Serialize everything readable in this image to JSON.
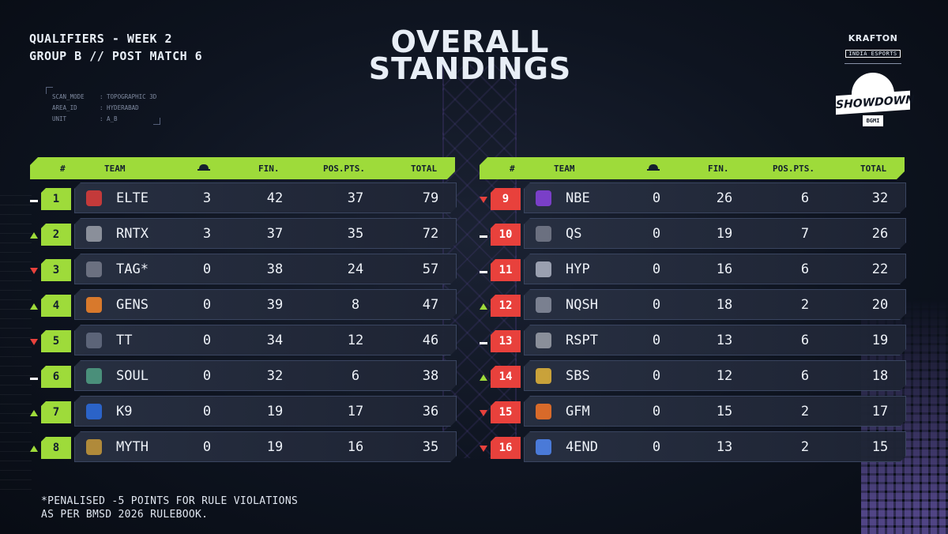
{
  "header": {
    "line1": "QUALIFIERS - WEEK 2",
    "line2": "GROUP B // POST MATCH 6"
  },
  "scan_panel": [
    {
      "key": "SCAN_MODE",
      "value": ": TOPOGRAPHIC 3D"
    },
    {
      "key": "AREA_ID",
      "value": ": HYDERABAD"
    },
    {
      "key": "UNIT",
      "value": ": A_B"
    }
  ],
  "title": {
    "line1": "OVERALL",
    "line2": "STANDINGS"
  },
  "brand": {
    "name": "KRAFTON",
    "sub": "INDIA ESPORTS",
    "badge": "SHOWDOWN",
    "badge_sub": "BGMI"
  },
  "columns": {
    "rank": "#",
    "team": "TEAM",
    "fin": "FIN.",
    "pos": "POS.PTS.",
    "total": "TOTAL"
  },
  "colors": {
    "accent": "#9edb3a",
    "down": "#e8413c",
    "bg": "#0e1420"
  },
  "left_rows": [
    {
      "change": "same",
      "rank": "1",
      "team": "ELTE",
      "elims": "3",
      "fin": "42",
      "pos": "37",
      "total": "79",
      "logo": "ELTE",
      "logo_color": "#c43a3a",
      "rank_color": "green"
    },
    {
      "change": "up",
      "rank": "2",
      "team": "RNTX",
      "elims": "3",
      "fin": "37",
      "pos": "35",
      "total": "72",
      "logo": "RNTX",
      "logo_color": "#8a8f9a",
      "rank_color": "green"
    },
    {
      "change": "down",
      "rank": "3",
      "team": "TAG*",
      "elims": "0",
      "fin": "38",
      "pos": "24",
      "total": "57",
      "logo": "TAG",
      "logo_color": "#6b7080",
      "rank_color": "green"
    },
    {
      "change": "up",
      "rank": "4",
      "team": "GENS",
      "elims": "0",
      "fin": "39",
      "pos": "8",
      "total": "47",
      "logo": "GENS",
      "logo_color": "#d8792c",
      "rank_color": "green"
    },
    {
      "change": "down",
      "rank": "5",
      "team": "TT",
      "elims": "0",
      "fin": "34",
      "pos": "12",
      "total": "46",
      "logo": "TT",
      "logo_color": "#5c6478",
      "rank_color": "green"
    },
    {
      "change": "same",
      "rank": "6",
      "team": "SOUL",
      "elims": "0",
      "fin": "32",
      "pos": "6",
      "total": "38",
      "logo": "SOUL",
      "logo_color": "#4a8f7a",
      "rank_color": "green"
    },
    {
      "change": "up",
      "rank": "7",
      "team": "K9",
      "elims": "0",
      "fin": "19",
      "pos": "17",
      "total": "36",
      "logo": "K9",
      "logo_color": "#2b63c8",
      "rank_color": "green"
    },
    {
      "change": "up",
      "rank": "8",
      "team": "MYTH",
      "elims": "0",
      "fin": "19",
      "pos": "16",
      "total": "35",
      "logo": "MYTH",
      "logo_color": "#b08a3a",
      "rank_color": "green"
    }
  ],
  "right_rows": [
    {
      "change": "down",
      "rank": "9",
      "team": "NBE",
      "elims": "0",
      "fin": "26",
      "pos": "6",
      "total": "32",
      "logo": "NBE",
      "logo_color": "#7a3fc8",
      "rank_color": "red"
    },
    {
      "change": "same",
      "rank": "10",
      "team": "QS",
      "elims": "0",
      "fin": "19",
      "pos": "7",
      "total": "26",
      "logo": "QS",
      "logo_color": "#6b7080",
      "rank_color": "red"
    },
    {
      "change": "same",
      "rank": "11",
      "team": "HYP",
      "elims": "0",
      "fin": "16",
      "pos": "6",
      "total": "22",
      "logo": "HYP",
      "logo_color": "#9aa0b0",
      "rank_color": "red"
    },
    {
      "change": "up",
      "rank": "12",
      "team": "NQSH",
      "elims": "0",
      "fin": "18",
      "pos": "2",
      "total": "20",
      "logo": "NQSH",
      "logo_color": "#7a8090",
      "rank_color": "red"
    },
    {
      "change": "same",
      "rank": "13",
      "team": "RSPT",
      "elims": "0",
      "fin": "13",
      "pos": "6",
      "total": "19",
      "logo": "RSPT",
      "logo_color": "#8a8f9a",
      "rank_color": "red"
    },
    {
      "change": "up",
      "rank": "14",
      "team": "SBS",
      "elims": "0",
      "fin": "12",
      "pos": "6",
      "total": "18",
      "logo": "SBS",
      "logo_color": "#c9a23a",
      "rank_color": "red"
    },
    {
      "change": "down",
      "rank": "15",
      "team": "GFM",
      "elims": "0",
      "fin": "15",
      "pos": "2",
      "total": "17",
      "logo": "GFM",
      "logo_color": "#d86a2a",
      "rank_color": "red"
    },
    {
      "change": "down",
      "rank": "16",
      "team": "4END",
      "elims": "0",
      "fin": "13",
      "pos": "2",
      "total": "15",
      "logo": "4",
      "logo_color": "#4a7ad8",
      "rank_color": "red"
    }
  ],
  "footer": {
    "line1": "*PENALISED -5 POINTS FOR RULE VIOLATIONS",
    "line2": "AS PER BMSD 2026 RULEBOOK."
  }
}
